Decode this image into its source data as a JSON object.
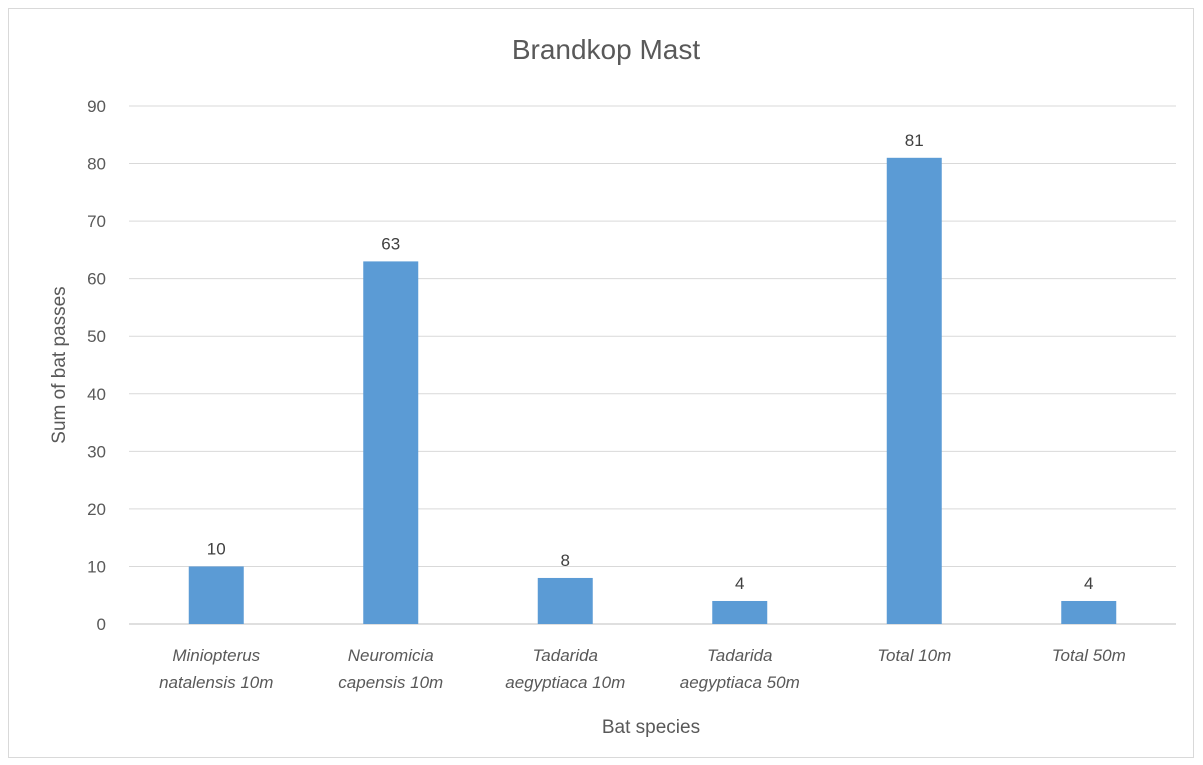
{
  "chart_data": {
    "type": "bar",
    "title": "Brandkop Mast",
    "xlabel": "Bat species",
    "ylabel": "Sum of bat passes",
    "categories": [
      [
        "Miniopterus",
        "natalensis 10m"
      ],
      [
        "Neuromicia",
        "capensis 10m"
      ],
      [
        "Tadarida",
        "aegyptiaca 10m"
      ],
      [
        "Tadarida",
        "aegyptiaca 50m"
      ],
      [
        "Total 10m"
      ],
      [
        "Total 50m"
      ]
    ],
    "values": [
      10,
      63,
      8,
      4,
      81,
      4
    ],
    "data_labels": [
      "10",
      "63",
      "8",
      "4",
      "81",
      "4"
    ],
    "ylim": [
      0,
      90
    ],
    "yticks": [
      0,
      10,
      20,
      30,
      40,
      50,
      60,
      70,
      80,
      90
    ],
    "grid": true,
    "legend": "none",
    "bar_color": "#5b9bd5"
  }
}
